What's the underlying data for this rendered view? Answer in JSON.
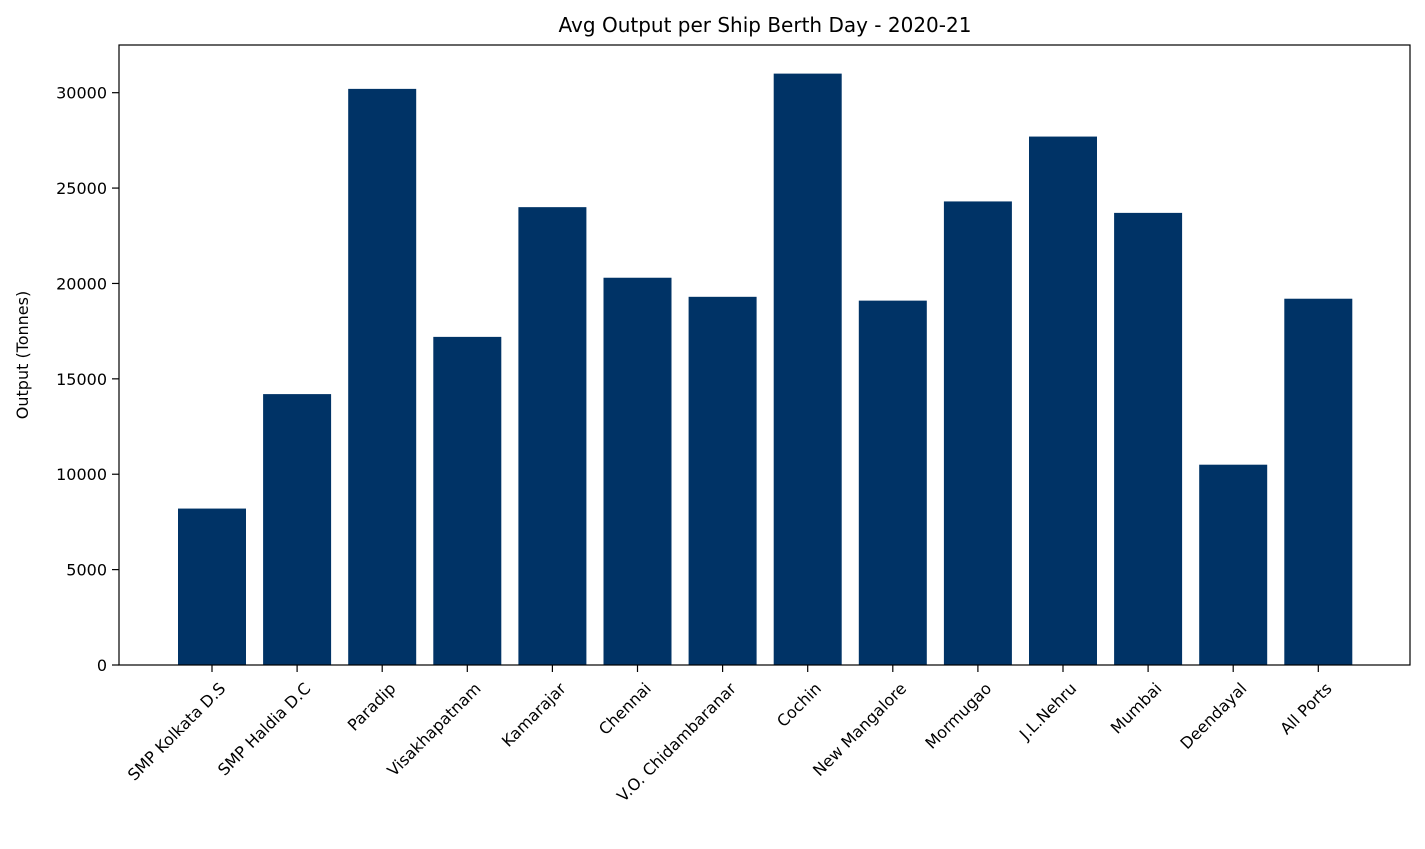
{
  "chart_data": {
    "type": "bar",
    "title": "Avg Output per Ship Berth Day - 2020-21",
    "xlabel": "",
    "ylabel": "Output (Tonnes)",
    "categories": [
      "SMP Kolkata D.S",
      "SMP Haldia D.C",
      "Paradip",
      "Visakhapatnam",
      "Kamarajar",
      "Chennai",
      "V.O. Chidambaranar",
      "Cochin",
      "New Mangalore",
      "Mormugao",
      "J.L.Nehru",
      "Mumbai",
      "Deendayal",
      "All Ports"
    ],
    "values": [
      8200,
      14200,
      30200,
      17200,
      24000,
      20300,
      19300,
      31000,
      19100,
      24300,
      27700,
      23700,
      10500,
      19200
    ],
    "ylim": [
      0,
      32500
    ],
    "yticks": [
      0,
      5000,
      10000,
      15000,
      20000,
      25000,
      30000
    ],
    "bar_color": "#003366",
    "grid": false,
    "legend": "none"
  }
}
